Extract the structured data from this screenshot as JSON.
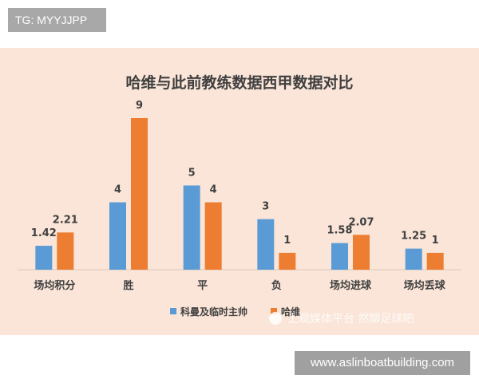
{
  "tag": "TG: MYYJJPP",
  "url": "www.aslinboatbuilding.com",
  "watermark": "上观媒体平台 然聊足球吧",
  "colors": {
    "series1": "#5b9bd5",
    "series2": "#ed7d31",
    "background": "#fae5d8",
    "text": "#404040"
  },
  "chart_data": {
    "type": "bar",
    "title": "哈维与此前教练数据西甲数据对比",
    "categories": [
      "场均积分",
      "胜",
      "平",
      "负",
      "场均进球",
      "场均丢球"
    ],
    "series": [
      {
        "name": "科曼及临时主帅",
        "values": [
          1.42,
          4,
          5,
          3,
          1.58,
          1.25
        ],
        "labels": [
          "1.42",
          "4",
          "5",
          "3",
          "1.58",
          "1.25"
        ]
      },
      {
        "name": "哈维",
        "values": [
          2.21,
          9,
          4,
          1,
          2.07,
          1
        ],
        "labels": [
          "2.21",
          "9",
          "4",
          "1",
          "2.07",
          "1"
        ]
      }
    ],
    "legend": "bottom",
    "grid": false
  }
}
